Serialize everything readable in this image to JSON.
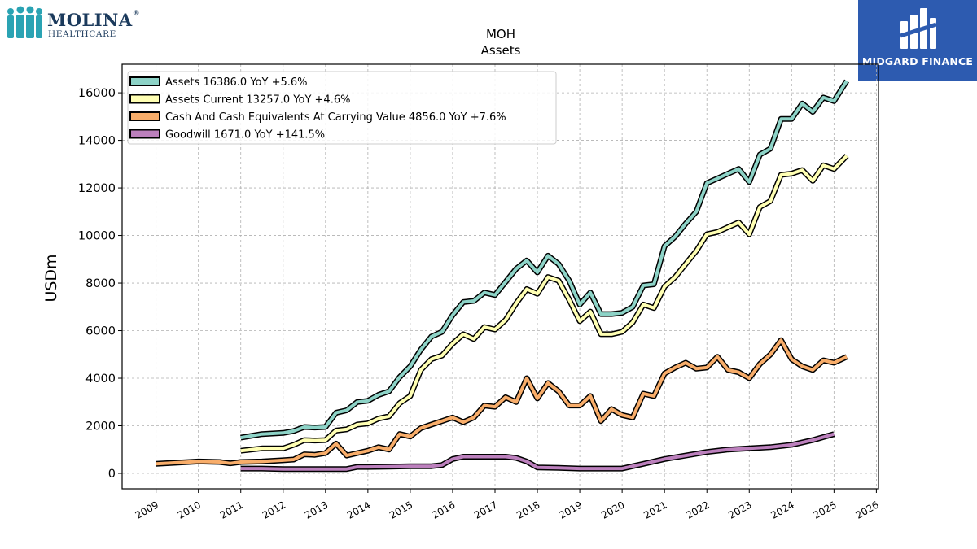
{
  "brand": {
    "left_logo_line1": "MOLINA",
    "left_logo_line2": "HEALTHCARE",
    "left_logo_mark": "®",
    "right_logo_text": "MIDGARD FINANCE",
    "right_logo_bg": "#2d5bb0"
  },
  "chart_data": {
    "type": "line",
    "title": "MOH",
    "subtitle": "Assets",
    "xlabel": "",
    "ylabel": "USDm",
    "xlim": [
      2008.2,
      2026.05
    ],
    "ylim": [
      -650,
      17200
    ],
    "yticks": [
      0,
      2000,
      4000,
      6000,
      8000,
      10000,
      12000,
      14000,
      16000
    ],
    "xticks": [
      "2009",
      "2010",
      "2011",
      "2012",
      "2013",
      "2014",
      "2015",
      "2016",
      "2017",
      "2018",
      "2019",
      "2020",
      "2021",
      "2022",
      "2023",
      "2024",
      "2025",
      "2026"
    ],
    "grid": true,
    "legend_position": "top-left",
    "series": [
      {
        "name": "Assets",
        "legend": "Assets  16386.0 YoY +5.6%",
        "color": "#8dd3c7",
        "x": [
          2011.0,
          2011.5,
          2012.0,
          2012.25,
          2012.5,
          2012.75,
          2013.0,
          2013.25,
          2013.5,
          2013.75,
          2014.0,
          2014.25,
          2014.5,
          2014.75,
          2015.0,
          2015.25,
          2015.5,
          2015.75,
          2016.0,
          2016.25,
          2016.5,
          2016.75,
          2017.0,
          2017.25,
          2017.5,
          2017.75,
          2018.0,
          2018.25,
          2018.5,
          2018.75,
          2019.0,
          2019.25,
          2019.5,
          2019.75,
          2020.0,
          2020.25,
          2020.5,
          2020.75,
          2021.0,
          2021.25,
          2021.5,
          2021.75,
          2022.0,
          2022.25,
          2022.5,
          2022.75,
          2023.0,
          2023.25,
          2023.5,
          2023.75,
          2024.0,
          2024.25,
          2024.5,
          2024.75,
          2025.0,
          2025.3
        ],
        "y": [
          1500,
          1650,
          1700,
          1780,
          1950,
          1930,
          1950,
          2550,
          2650,
          3000,
          3050,
          3300,
          3450,
          4050,
          4500,
          5200,
          5750,
          5950,
          6650,
          7200,
          7250,
          7600,
          7500,
          8050,
          8600,
          8950,
          8450,
          9150,
          8800,
          8100,
          7100,
          7600,
          6700,
          6700,
          6750,
          7000,
          7900,
          7950,
          9550,
          9950,
          10500,
          11000,
          12200,
          12400,
          12600,
          12800,
          12250,
          13400,
          13650,
          14900,
          14900,
          15550,
          15200,
          15800,
          15650,
          16500
        ]
      },
      {
        "name": "Assets Current",
        "legend": "Assets Current  13257.0 YoY +4.6%",
        "color": "#ffffb3",
        "x": [
          2011.0,
          2011.5,
          2012.0,
          2012.25,
          2012.5,
          2012.75,
          2013.0,
          2013.25,
          2013.5,
          2013.75,
          2014.0,
          2014.25,
          2014.5,
          2014.75,
          2015.0,
          2015.25,
          2015.5,
          2015.75,
          2016.0,
          2016.25,
          2016.5,
          2016.75,
          2017.0,
          2017.25,
          2017.5,
          2017.75,
          2018.0,
          2018.25,
          2018.5,
          2018.75,
          2019.0,
          2019.25,
          2019.5,
          2019.75,
          2020.0,
          2020.25,
          2020.5,
          2020.75,
          2021.0,
          2021.25,
          2021.5,
          2021.75,
          2022.0,
          2022.25,
          2022.5,
          2022.75,
          2023.0,
          2023.25,
          2023.5,
          2023.75,
          2024.0,
          2024.25,
          2024.5,
          2024.75,
          2025.0,
          2025.3
        ],
        "y": [
          950,
          1050,
          1050,
          1200,
          1400,
          1380,
          1400,
          1800,
          1850,
          2050,
          2100,
          2300,
          2400,
          2950,
          3250,
          4350,
          4800,
          4950,
          5450,
          5850,
          5650,
          6150,
          6050,
          6450,
          7150,
          7750,
          7550,
          8250,
          8100,
          7300,
          6400,
          6800,
          5850,
          5850,
          5950,
          6350,
          7100,
          6950,
          7850,
          8250,
          8800,
          9350,
          10050,
          10150,
          10350,
          10550,
          10050,
          11200,
          11450,
          12550,
          12600,
          12750,
          12300,
          12950,
          12800,
          13350
        ]
      },
      {
        "name": "Cash And Cash Equivalents At Carrying Value",
        "legend": "Cash And Cash Equivalents At Carrying Value  4856.0 YoY +7.6%",
        "color": "#f8ad6a",
        "x": [
          2009.0,
          2010.0,
          2010.5,
          2010.75,
          2011.0,
          2011.5,
          2012.0,
          2012.25,
          2012.5,
          2012.75,
          2013.0,
          2013.25,
          2013.5,
          2013.75,
          2014.0,
          2014.25,
          2014.5,
          2014.75,
          2015.0,
          2015.25,
          2015.5,
          2015.75,
          2016.0,
          2016.25,
          2016.5,
          2016.75,
          2017.0,
          2017.25,
          2017.5,
          2017.75,
          2018.0,
          2018.25,
          2018.5,
          2018.75,
          2019.0,
          2019.25,
          2019.5,
          2019.75,
          2020.0,
          2020.25,
          2020.5,
          2020.75,
          2021.0,
          2021.25,
          2021.5,
          2021.75,
          2022.0,
          2022.25,
          2022.5,
          2022.75,
          2023.0,
          2023.25,
          2023.5,
          2023.75,
          2024.0,
          2024.25,
          2024.5,
          2024.75,
          2025.0,
          2025.3
        ],
        "y": [
          400,
          500,
          480,
          420,
          480,
          500,
          550,
          580,
          800,
          780,
          850,
          1250,
          750,
          850,
          950,
          1100,
          1000,
          1650,
          1550,
          1900,
          2050,
          2200,
          2350,
          2150,
          2350,
          2850,
          2800,
          3200,
          3000,
          4000,
          3150,
          3800,
          3450,
          2850,
          2850,
          3250,
          2200,
          2700,
          2450,
          2350,
          3350,
          3250,
          4200,
          4450,
          4650,
          4400,
          4450,
          4900,
          4350,
          4250,
          4000,
          4600,
          5000,
          5600,
          4800,
          4500,
          4350,
          4750,
          4650,
          4900
        ]
      },
      {
        "name": "Goodwill",
        "legend": "Goodwill  1671.0 YoY +141.5%",
        "color": "#bc80bd",
        "x": [
          2011.0,
          2011.5,
          2012.0,
          2012.5,
          2013.0,
          2013.5,
          2013.75,
          2014.0,
          2014.5,
          2015.0,
          2015.5,
          2015.75,
          2016.0,
          2016.25,
          2016.75,
          2017.25,
          2017.5,
          2017.75,
          2018.0,
          2018.5,
          2019.0,
          2019.5,
          2020.0,
          2020.5,
          2021.0,
          2021.5,
          2022.0,
          2022.5,
          2023.0,
          2023.5,
          2024.0,
          2024.5,
          2025.0
        ],
        "y": [
          200,
          200,
          180,
          180,
          180,
          180,
          270,
          270,
          280,
          300,
          300,
          350,
          600,
          700,
          700,
          700,
          650,
          500,
          250,
          230,
          200,
          200,
          200,
          400,
          600,
          750,
          900,
          1000,
          1050,
          1100,
          1200,
          1400,
          1650
        ]
      }
    ]
  }
}
